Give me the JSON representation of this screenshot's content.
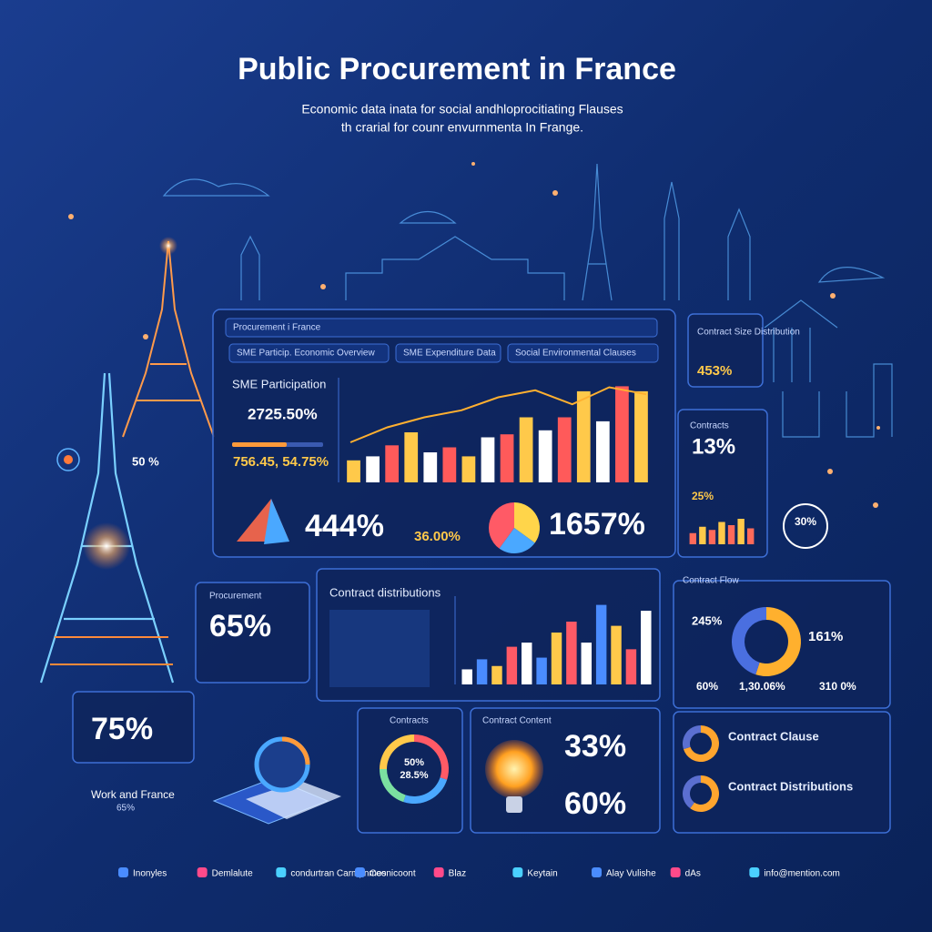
{
  "header": {
    "title": "Public Procurement in France",
    "subtitle": [
      "Economic data inata for social andhloprocitiating Flauses",
      "th crarial for counr envurnmenta In Frange."
    ]
  },
  "side_labels": {
    "left": "50 %",
    "ring": "30%"
  },
  "main_panel": {
    "title": "Procurement i France",
    "tabs": [
      "SME Particip. Economic Overview",
      "SME Expenditure Data",
      "Social Environmental Clauses"
    ],
    "sme_label": "SME Participation",
    "stat_a": "2725.50%",
    "stat_b": "756.45, 54.75%",
    "stat_c": "444%",
    "stat_d": "36.00%",
    "stat_e": "1657%",
    "bar_chart": {
      "ylim": [
        0,
        100
      ],
      "values": [
        22,
        26,
        37,
        50,
        30,
        35,
        26,
        45,
        48,
        65,
        52,
        65,
        91,
        61,
        96,
        91
      ],
      "colors": [
        "#ffc94a",
        "#ffffff",
        "#ff5a5a"
      ],
      "trend": [
        40,
        55,
        65,
        72,
        85,
        92,
        78,
        95,
        88
      ]
    },
    "pie": {
      "values": [
        35,
        25,
        40
      ],
      "colors": [
        "#ffd54a",
        "#4aa8ff",
        "#ff5a66"
      ]
    }
  },
  "size_panel": {
    "title": "Contract Size Distribution",
    "value": "453%"
  },
  "contracts_panel": {
    "title": "Contracts",
    "value": "13%",
    "sub": "25%",
    "bar_chart": {
      "ylim": [
        0,
        100
      ],
      "values": [
        35,
        55,
        45,
        70,
        60,
        80,
        50
      ],
      "colors": [
        "#ff6a5a",
        "#ffc94a"
      ]
    }
  },
  "procurement_panel": {
    "title": "Procurement",
    "value": "65%"
  },
  "distribution_panel": {
    "title": "Contract distributions",
    "bar_chart": {
      "ylim": [
        0,
        100
      ],
      "values": [
        18,
        30,
        22,
        45,
        50,
        32,
        62,
        75,
        50,
        95,
        70,
        42,
        88
      ],
      "colors": [
        "#ffffff",
        "#4a8cff",
        "#ffc94a",
        "#ff5a66"
      ]
    }
  },
  "flow_panel": {
    "title": "Contract Flow",
    "left": "245%",
    "right": "161%",
    "bottom": [
      "60%",
      "1,30.06%",
      "310 0%"
    ],
    "donut": {
      "values": [
        55,
        45
      ],
      "colors": [
        "#ffb02e",
        "#4a6fe0"
      ]
    }
  },
  "work_panel": {
    "value": "75%",
    "title": "Work and France",
    "sub": "65%"
  },
  "contracts_donut_panel": {
    "title": "Contracts",
    "center": [
      "50%",
      "28.5%"
    ],
    "donut": {
      "values": [
        30,
        25,
        20,
        25
      ],
      "colors": [
        "#ff5a66",
        "#4aa8ff",
        "#7be0a0",
        "#ffc94a"
      ]
    }
  },
  "content_panel": {
    "title": "Contract Content",
    "value_a": "33%",
    "value_b": "60%"
  },
  "clause_panel": {
    "items": [
      "Contract Clause",
      "Contract Distributions"
    ],
    "donuts": [
      {
        "values": [
          70,
          30
        ],
        "colors": [
          "#ffa52e",
          "#5b6fd0"
        ]
      },
      {
        "values": [
          60,
          40
        ],
        "colors": [
          "#ffa52e",
          "#5b6fd0"
        ]
      }
    ]
  },
  "footer": [
    "Inonyles",
    "Demlalute",
    "condurtran Carmpnmes",
    "Coonicoont",
    "Blaz",
    "Keytain",
    "Alay Vulishe",
    "dAs",
    "info@mention.com"
  ]
}
